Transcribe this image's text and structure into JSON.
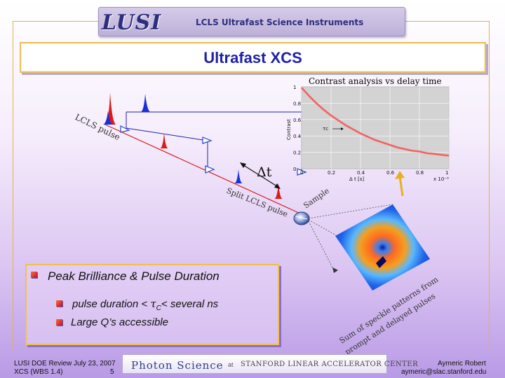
{
  "header": {
    "logo_text": "LUSI",
    "subtitle": "LCLS Ultrafast Science Instruments"
  },
  "slide": {
    "title": "Ultrafast XCS"
  },
  "diagram": {
    "lcls_pulse_label": "LCLS pulse",
    "split_pulse_label": "Split LCLS pulse",
    "delta_t_label": "Δt",
    "sample_label": "Sample",
    "speckle_caption_line1": "Sum of speckle patterns from",
    "speckle_caption_line2": "prompt and delayed pulses",
    "colors": {
      "red_pulse": "#e01818",
      "blue_pulse": "#1a2fd8",
      "beam": "#d02020"
    }
  },
  "chart_data": {
    "type": "line",
    "title": "Contrast analysis vs delay time",
    "xlabel": "Δ t [s]",
    "ylabel": "Contrast",
    "x_multiplier_label": "x 10⁻⁹",
    "tau_label": "τc",
    "xlim": [
      0,
      1
    ],
    "ylim": [
      0,
      1
    ],
    "xticks": [
      "0",
      "0.2",
      "0.4",
      "0.6",
      "0.8",
      "1"
    ],
    "yticks": [
      "0",
      "0.2",
      "0.4",
      "0.6",
      "0.8",
      "1"
    ],
    "grid": true,
    "series": [
      {
        "x": [
          0,
          0.05,
          0.1,
          0.15,
          0.2,
          0.25,
          0.3,
          0.35,
          0.4,
          0.45,
          0.5,
          0.55,
          0.6,
          0.65,
          0.7,
          0.75,
          0.8,
          0.85,
          0.9,
          0.95,
          1.0
        ],
        "y": [
          0.99,
          0.89,
          0.8,
          0.72,
          0.65,
          0.59,
          0.53,
          0.48,
          0.43,
          0.39,
          0.35,
          0.32,
          0.29,
          0.26,
          0.24,
          0.22,
          0.21,
          0.19,
          0.18,
          0.17,
          0.16
        ],
        "color": "#e02020"
      }
    ]
  },
  "bullets": {
    "heading": "Peak Brilliance & Pulse Duration",
    "item1_prefix": "pulse duration  <",
    "item1_tau": "τ",
    "item1_sub": "C",
    "item1_suffix": "< several ns",
    "item2": "Large Q’s accessible"
  },
  "footer": {
    "left_line1": "LUSI DOE Review July 23, 2007",
    "left_line2": "XCS (WBS 1.4)",
    "page_number": "5",
    "photon_science": "Photon Science",
    "at": "at",
    "center_name": "STANFORD LINEAR ACCELERATOR CENTER",
    "author": "Aymeric Robert",
    "email": "aymeric@slac.stanford.edu"
  }
}
